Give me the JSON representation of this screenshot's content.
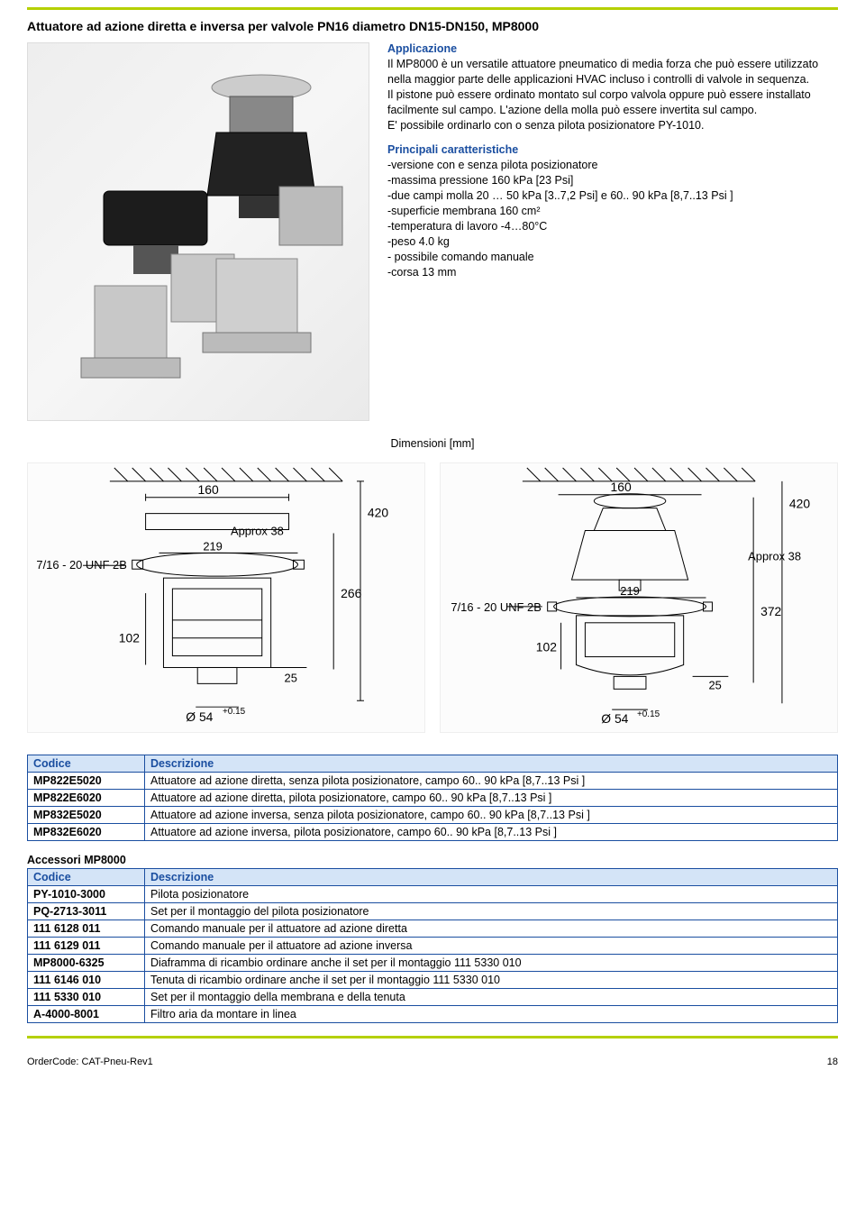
{
  "rule_color": "#b5d000",
  "accent_color": "#1a4ea0",
  "header_bg": "#d4e4f7",
  "title": "Attuatore ad azione diretta e inversa per valvole PN16 diametro DN15-DN150, MP8000",
  "sections": {
    "app_head": "Applicazione",
    "app_body": "Il MP8000 è un versatile attuatore pneumatico di media forza che può essere utilizzato nella maggior parte delle applicazioni HVAC incluso i controlli di valvole in sequenza.\nIl pistone può essere ordinato montato sul corpo valvola oppure può essere installato facilmente sul campo. L'azione della molla può essere invertita sul campo.\nE' possibile ordinarlo con o senza pilota posizionatore PY-1010.",
    "feat_head": "Principali caratteristiche",
    "feat_lines": [
      "-versione con e senza pilota posizionatore",
      "-massima pressione 160 kPa [23 Psi]",
      "-due campi molla 20 … 50 kPa [3..7,2 Psi]  e 60.. 90 kPa [8,7..13 Psi ]",
      "-superficie membrana 160 cm²",
      "-temperatura di lavoro -4…80°C",
      "-peso 4.0 kg",
      "- possibile  comando manuale",
      " -corsa 13 mm"
    ],
    "dim_label": "Dimensioni [mm]"
  },
  "diagram_left": {
    "vals": {
      "w": "160",
      "h_total": "420",
      "approx": "Approx  38",
      "w2": "219",
      "h_mid": "266",
      "thread": "7/16 - 20 UNF 2B",
      "h_low": "102",
      "foot": "25",
      "dia": "Ø 54",
      "tol": "+0.15"
    }
  },
  "diagram_right": {
    "vals": {
      "w": "160",
      "h_total": "420",
      "approx": "Approx  38",
      "w2": "219",
      "h_mid": "372",
      "thread": "7/16 - 20 UNF 2B",
      "h_low": "102",
      "foot": "25",
      "dia": "Ø 54",
      "tol": "+0.15"
    }
  },
  "table1": {
    "columns": [
      "Codice",
      "Descrizione"
    ],
    "rows": [
      [
        "MP822E5020",
        "Attuatore ad azione diretta, senza pilota posizionatore, campo 60.. 90 kPa [8,7..13 Psi ]"
      ],
      [
        "MP822E6020",
        "Attuatore ad azione diretta, pilota posizionatore, campo 60.. 90 kPa [8,7..13 Psi ]"
      ],
      [
        "MP832E5020",
        "Attuatore ad azione inversa, senza pilota posizionatore, campo 60.. 90 kPa [8,7..13 Psi ]"
      ],
      [
        "MP832E6020",
        "Attuatore ad azione inversa, pilota posizionatore, campo 60.. 90 kPa [8,7..13 Psi ]"
      ]
    ]
  },
  "table2": {
    "title": "Accessori MP8000",
    "columns": [
      "Codice",
      "Descrizione"
    ],
    "rows": [
      [
        "PY-1010-3000",
        "Pilota posizionatore"
      ],
      [
        "PQ-2713-3011",
        "Set per il montaggio del pilota posizionatore"
      ],
      [
        "111 6128 011",
        "Comando manuale per il attuatore ad azione diretta"
      ],
      [
        "111 6129 011",
        "Comando manuale per il attuatore ad azione inversa"
      ],
      [
        "MP8000-6325",
        "Diaframma di ricambio ordinare anche il set per il montaggio 111 5330 010"
      ],
      [
        "111 6146 010",
        "Tenuta di ricambio ordinare anche il set per il montaggio 111 5330 010"
      ],
      [
        "111 5330 010",
        "Set per il montaggio della membrana e della tenuta"
      ],
      [
        "A-4000-8001",
        "Filtro aria da montare in linea"
      ]
    ]
  },
  "footer": {
    "order": "OrderCode: CAT-Pneu-Rev1",
    "page": "18"
  }
}
